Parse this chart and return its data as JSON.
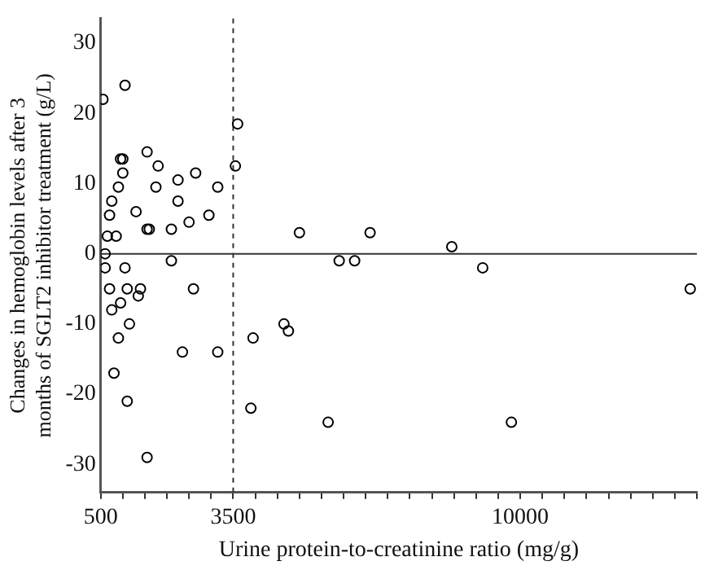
{
  "chart_data": {
    "type": "scatter",
    "xlabel": "Urine protein-to-creatinine ratio (mg/g)",
    "ylabel": "Changes in hemoglobin levels after 3 months of SGLT2 inhibitor treatment (g/L)",
    "xlim": [
      500,
      14000
    ],
    "ylim": [
      -34,
      33.5
    ],
    "xticks": [
      500,
      {
        "value": 1000,
        "label": null
      },
      {
        "value": 1500,
        "label": null
      },
      {
        "value": 2000,
        "label": null
      },
      {
        "value": 2500,
        "label": null
      },
      {
        "value": 3000,
        "label": null
      },
      3500,
      {
        "value": 4000,
        "label": null
      },
      {
        "value": 4500,
        "label": null
      },
      {
        "value": 5000,
        "label": null
      },
      {
        "value": 5500,
        "label": null
      },
      {
        "value": 6000,
        "label": null
      },
      {
        "value": 6500,
        "label": null
      },
      {
        "value": 7000,
        "label": null
      },
      {
        "value": 7500,
        "label": null
      },
      {
        "value": 8000,
        "label": null
      },
      {
        "value": 8500,
        "label": null
      },
      {
        "value": 9000,
        "label": null
      },
      {
        "value": 9500,
        "label": null
      },
      10000,
      {
        "value": 10500,
        "label": null
      },
      {
        "value": 11000,
        "label": null
      },
      {
        "value": 11500,
        "label": null
      },
      {
        "value": 12000,
        "label": null
      },
      {
        "value": 12500,
        "label": null
      },
      {
        "value": 13000,
        "label": null
      },
      {
        "value": 13500,
        "label": null
      },
      {
        "value": 14000,
        "label": null
      }
    ],
    "yticks": [
      -30,
      -20,
      -10,
      0,
      10,
      20,
      30
    ],
    "marker": "circle",
    "ref_lines": [
      {
        "axis": "y",
        "value": 0,
        "line_style": "solid",
        "color": "#333333"
      },
      {
        "axis": "x",
        "value": 3500,
        "line_style": "dashed",
        "color": "#333333"
      }
    ],
    "series": [
      {
        "color": "#000000",
        "x": [
          550,
          1050,
          1550,
          950,
          1000,
          1800,
          1000,
          2650,
          2250,
          900,
          1750,
          3150,
          750,
          2250,
          1300,
          700,
          2950,
          2500,
          1550,
          1600,
          2100,
          650,
          850,
          3550,
          3600,
          600,
          2100,
          600,
          1050,
          700,
          1100,
          1400,
          1350,
          2600,
          950,
          750,
          1150,
          900,
          2350,
          3150,
          800,
          1100,
          1550,
          3950,
          3900,
          5000,
          6600,
          5900,
          6250,
          8450,
          9150,
          13850,
          4650,
          4750,
          5650,
          9800
        ],
        "values": [
          22,
          24,
          14.5,
          13.5,
          13.5,
          12.5,
          11.5,
          11.5,
          10.5,
          9.5,
          9.5,
          9.5,
          7.5,
          7.5,
          6,
          5.5,
          5.5,
          4.5,
          3.5,
          3.5,
          3.5,
          2.5,
          2.5,
          12.5,
          18.5,
          0,
          -1,
          -2,
          -2,
          -5,
          -5,
          -5,
          -6,
          -5,
          -7,
          -8,
          -10,
          -12,
          -14,
          -14,
          -17,
          -21,
          -29,
          -12,
          -22,
          3,
          3,
          -1,
          -1,
          1,
          -2,
          -5,
          -10,
          -11,
          -24,
          -24
        ]
      }
    ]
  }
}
